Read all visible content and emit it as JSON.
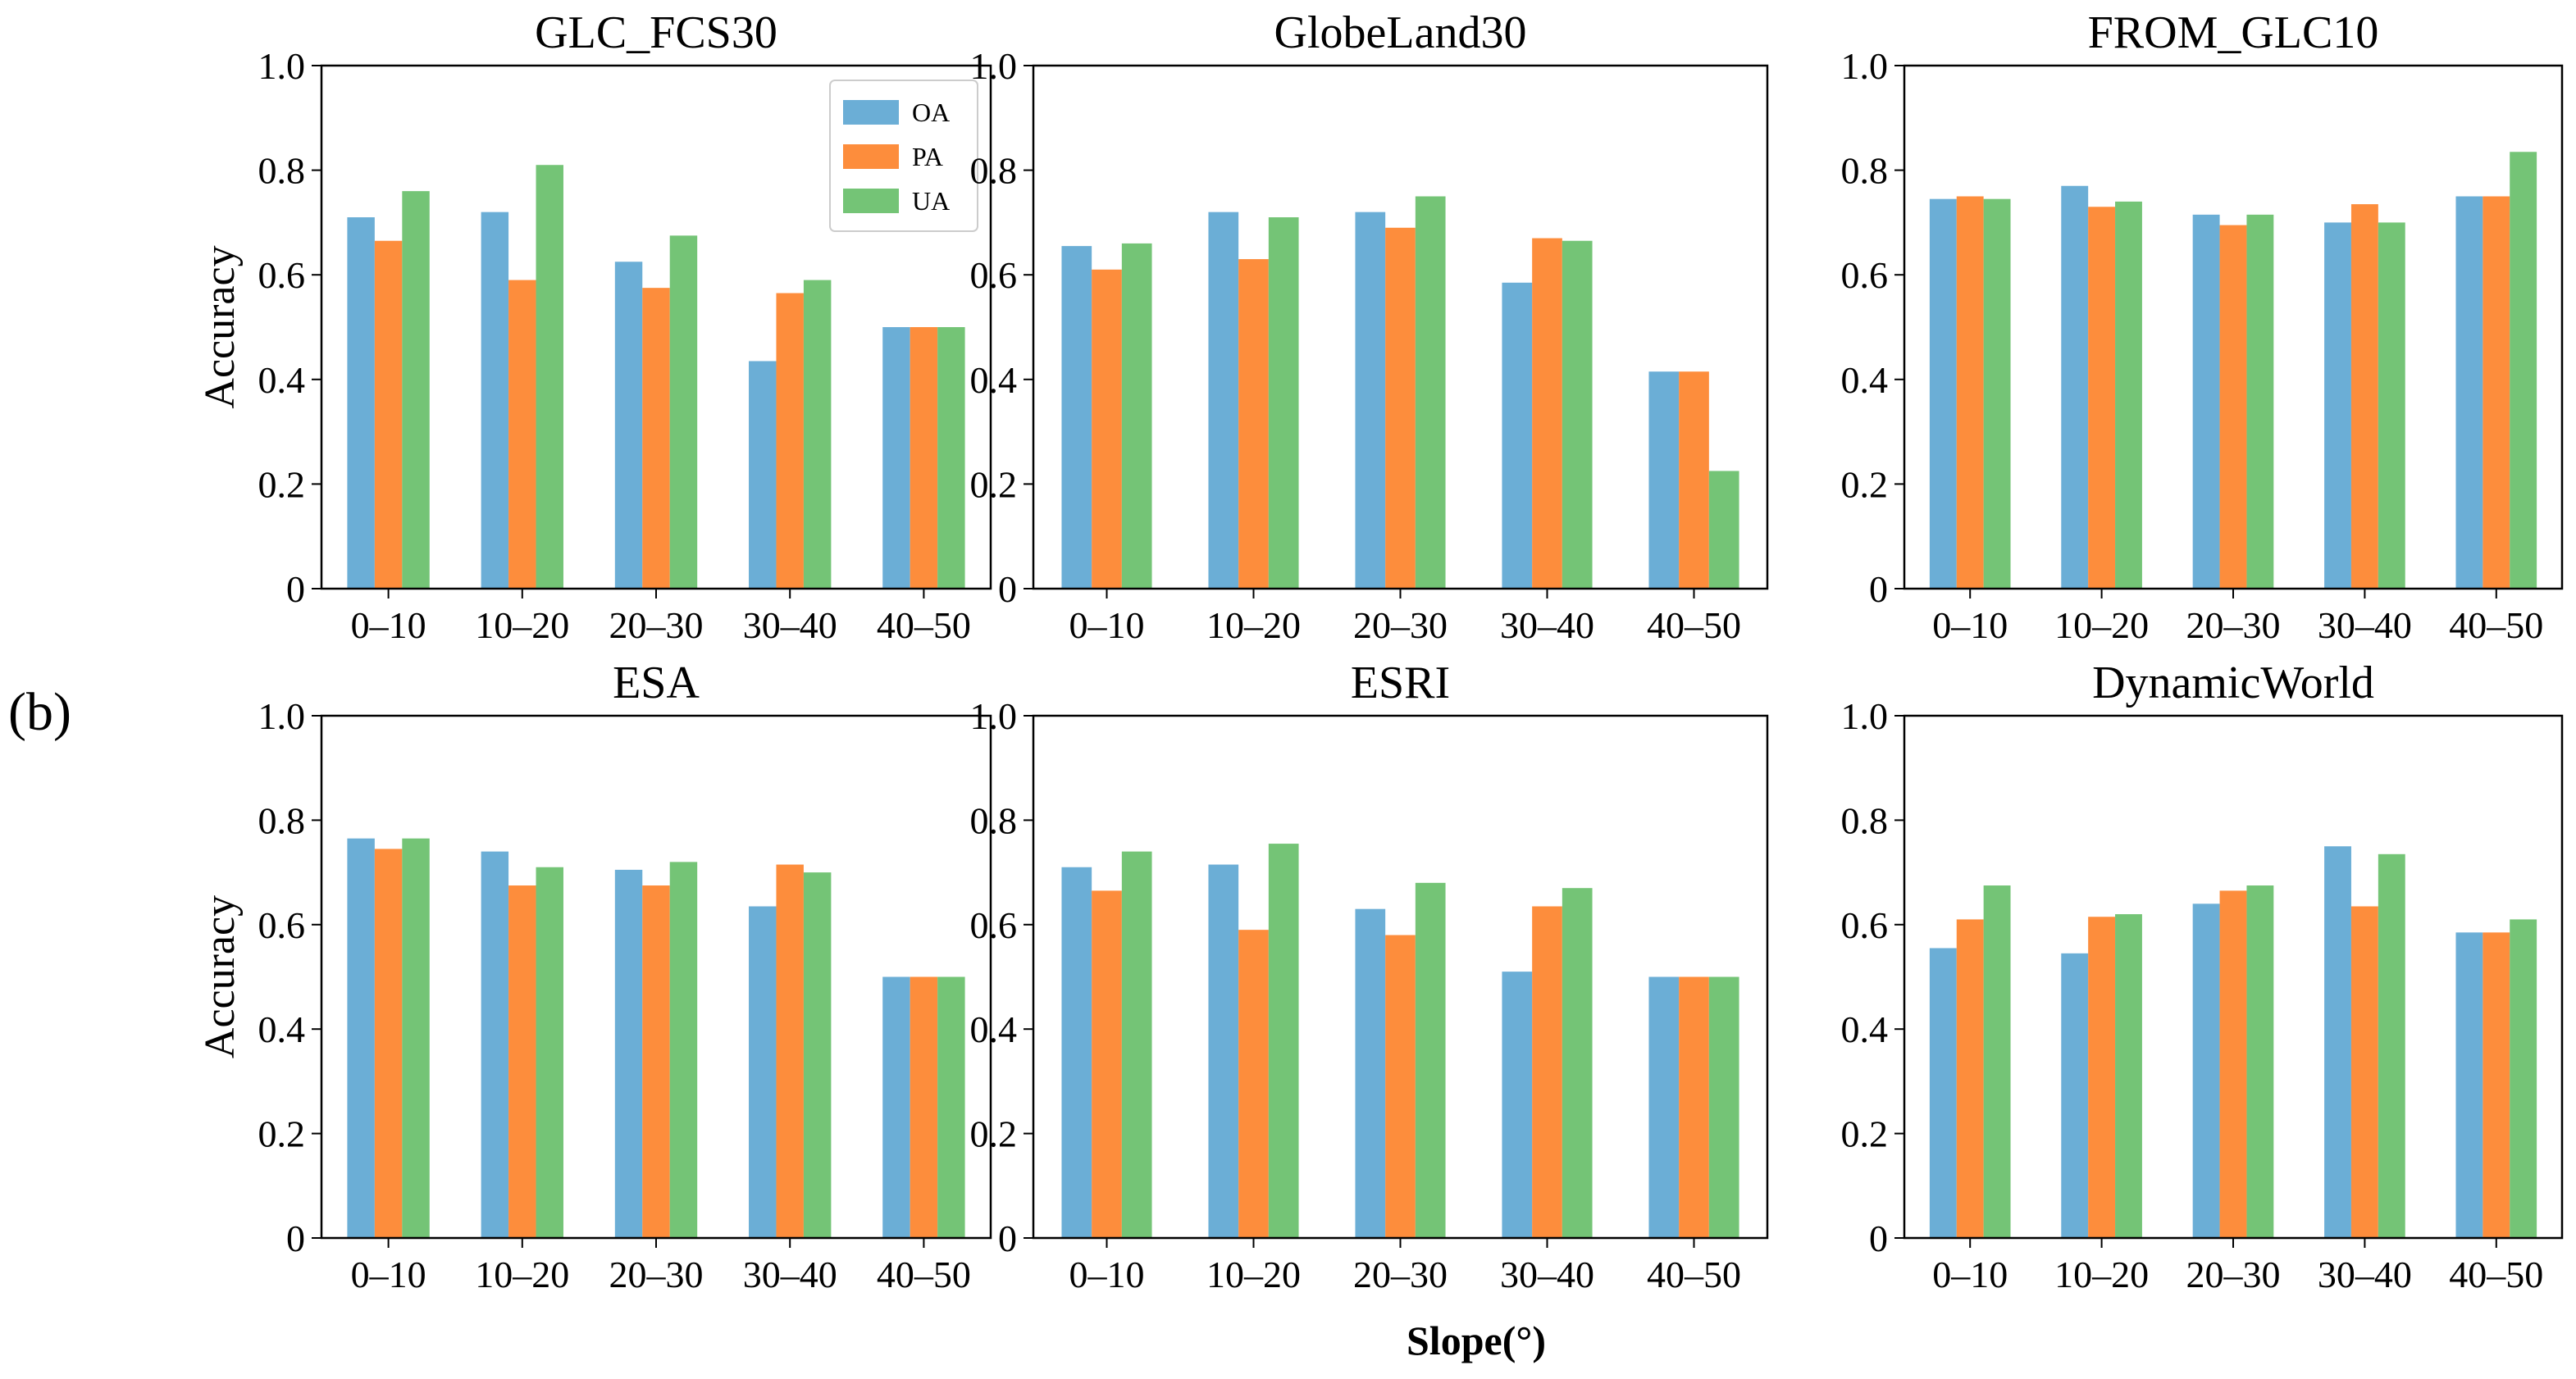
{
  "figure": {
    "panel_label": "(b)",
    "shared_xlabel": "Slope(°)",
    "shared_ylabel": "Accuracy"
  },
  "colors": {
    "OA": "#6baed6",
    "PA": "#fd8d3c",
    "UA": "#74c476"
  },
  "chart_data": [
    {
      "type": "bar",
      "title": "GLC_FCS30",
      "categories": [
        "0–10",
        "10–20",
        "20–30",
        "30–40",
        "40–50"
      ],
      "series": [
        {
          "name": "OA",
          "values": [
            0.71,
            0.72,
            0.625,
            0.435,
            0.5
          ]
        },
        {
          "name": "PA",
          "values": [
            0.665,
            0.59,
            0.575,
            0.565,
            0.5
          ]
        },
        {
          "name": "UA",
          "values": [
            0.76,
            0.81,
            0.675,
            0.59,
            0.5
          ]
        }
      ],
      "xlabel": "",
      "ylabel": "Accuracy",
      "ylim": [
        0,
        1.0
      ],
      "yticks": [
        "0",
        "0.2",
        "0.4",
        "0.6",
        "0.8",
        "1.0"
      ],
      "legend": {
        "entries": [
          "OA",
          "PA",
          "UA"
        ],
        "placement": "top-right"
      }
    },
    {
      "type": "bar",
      "title": "GlobeLand30",
      "categories": [
        "0–10",
        "10–20",
        "20–30",
        "30–40",
        "40–50"
      ],
      "series": [
        {
          "name": "OA",
          "values": [
            0.655,
            0.72,
            0.72,
            0.585,
            0.415
          ]
        },
        {
          "name": "PA",
          "values": [
            0.61,
            0.63,
            0.69,
            0.67,
            0.415
          ]
        },
        {
          "name": "UA",
          "values": [
            0.66,
            0.71,
            0.75,
            0.665,
            0.225
          ]
        }
      ],
      "xlabel": "",
      "ylabel": "",
      "ylim": [
        0,
        1.0
      ],
      "yticks": [
        "0",
        "0.2",
        "0.4",
        "0.6",
        "0.8",
        "1.0"
      ]
    },
    {
      "type": "bar",
      "title": "FROM_GLC10",
      "categories": [
        "0–10",
        "10–20",
        "20–30",
        "30–40",
        "40–50"
      ],
      "series": [
        {
          "name": "OA",
          "values": [
            0.745,
            0.77,
            0.715,
            0.7,
            0.75
          ]
        },
        {
          "name": "PA",
          "values": [
            0.75,
            0.73,
            0.695,
            0.735,
            0.75
          ]
        },
        {
          "name": "UA",
          "values": [
            0.745,
            0.74,
            0.715,
            0.7,
            0.835
          ]
        }
      ],
      "xlabel": "",
      "ylabel": "",
      "ylim": [
        0,
        1.0
      ],
      "yticks": [
        "0",
        "0.2",
        "0.4",
        "0.6",
        "0.8",
        "1.0"
      ]
    },
    {
      "type": "bar",
      "title": "ESA",
      "categories": [
        "0–10",
        "10–20",
        "20–30",
        "30–40",
        "40–50"
      ],
      "series": [
        {
          "name": "OA",
          "values": [
            0.765,
            0.74,
            0.705,
            0.635,
            0.5
          ]
        },
        {
          "name": "PA",
          "values": [
            0.745,
            0.675,
            0.675,
            0.715,
            0.5
          ]
        },
        {
          "name": "UA",
          "values": [
            0.765,
            0.71,
            0.72,
            0.7,
            0.5
          ]
        }
      ],
      "xlabel": "",
      "ylabel": "Accuracy",
      "ylim": [
        0,
        1.0
      ],
      "yticks": [
        "0",
        "0.2",
        "0.4",
        "0.6",
        "0.8",
        "1.0"
      ]
    },
    {
      "type": "bar",
      "title": "ESRI",
      "categories": [
        "0–10",
        "10–20",
        "20–30",
        "30–40",
        "40–50"
      ],
      "series": [
        {
          "name": "OA",
          "values": [
            0.71,
            0.715,
            0.63,
            0.51,
            0.5
          ]
        },
        {
          "name": "PA",
          "values": [
            0.665,
            0.59,
            0.58,
            0.635,
            0.5
          ]
        },
        {
          "name": "UA",
          "values": [
            0.74,
            0.755,
            0.68,
            0.67,
            0.5
          ]
        }
      ],
      "xlabel": "Slope(°)",
      "ylabel": "",
      "ylim": [
        0,
        1.0
      ],
      "yticks": [
        "0",
        "0.2",
        "0.4",
        "0.6",
        "0.8",
        "1.0"
      ]
    },
    {
      "type": "bar",
      "title": "DynamicWorld",
      "categories": [
        "0–10",
        "10–20",
        "20–30",
        "30–40",
        "40–50"
      ],
      "series": [
        {
          "name": "OA",
          "values": [
            0.555,
            0.545,
            0.64,
            0.75,
            0.585
          ]
        },
        {
          "name": "PA",
          "values": [
            0.61,
            0.615,
            0.665,
            0.635,
            0.585
          ]
        },
        {
          "name": "UA",
          "values": [
            0.675,
            0.62,
            0.675,
            0.735,
            0.61
          ]
        }
      ],
      "xlabel": "",
      "ylabel": "",
      "ylim": [
        0,
        1.0
      ],
      "yticks": [
        "0",
        "0.2",
        "0.4",
        "0.6",
        "0.8",
        "1.0"
      ]
    }
  ]
}
